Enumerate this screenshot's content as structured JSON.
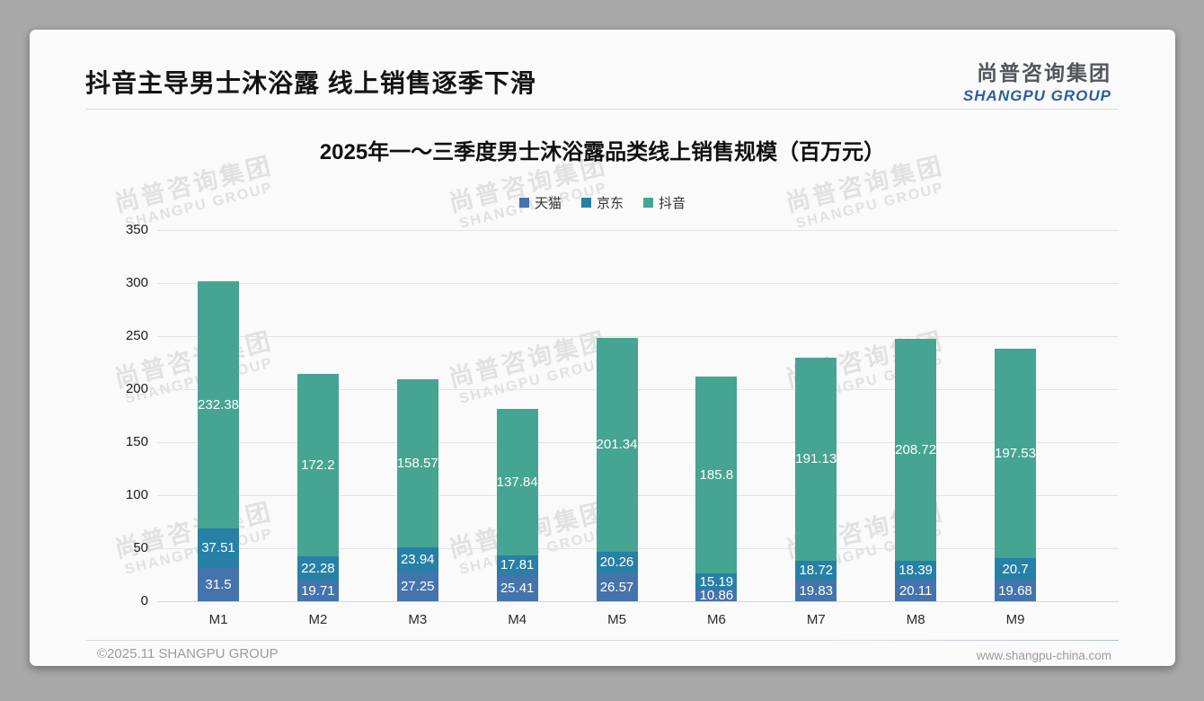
{
  "page": {
    "slide_title": "抖音主导男士沐浴露 线上销售逐季下滑",
    "logo": {
      "cn": "尚普咨询集团",
      "en": "SHANGPU GROUP"
    },
    "footer": {
      "left": "©2025.11 SHANGPU GROUP",
      "right": "www.shangpu-china.com"
    },
    "watermark": {
      "line1": "尚普咨询集团",
      "line2": "SHANGPU GROUP"
    }
  },
  "chart_data": {
    "type": "bar",
    "stacked": true,
    "title": "2025年一～三季度男士沐浴露品类线上销售规模（百万元）",
    "categories": [
      "M1",
      "M2",
      "M3",
      "M4",
      "M5",
      "M6",
      "M7",
      "M8",
      "M9"
    ],
    "series": [
      {
        "name": "天猫",
        "color": "#4573AC",
        "values": [
          31.5,
          19.71,
          27.25,
          25.41,
          26.57,
          10.86,
          19.83,
          20.11,
          19.68
        ]
      },
      {
        "name": "京东",
        "color": "#2780A5",
        "values": [
          37.51,
          22.28,
          23.94,
          17.81,
          20.26,
          15.19,
          18.72,
          18.39,
          20.7
        ]
      },
      {
        "name": "抖音",
        "color": "#46A492",
        "values": [
          232.38,
          172.2,
          158.57,
          137.84,
          201.34,
          185.8,
          191.13,
          208.72,
          197.53
        ]
      }
    ],
    "totals": [
      301.39,
      214.19,
      209.76,
      181.06,
      248.17,
      211.85,
      229.68,
      247.22,
      237.91
    ],
    "xlabel": "",
    "ylabel": "",
    "ylim": [
      0,
      350
    ],
    "yticks": [
      0,
      50,
      100,
      150,
      200,
      250,
      300,
      350
    ],
    "grid": true,
    "legend_position": "top",
    "value_labels": "inside-white"
  }
}
